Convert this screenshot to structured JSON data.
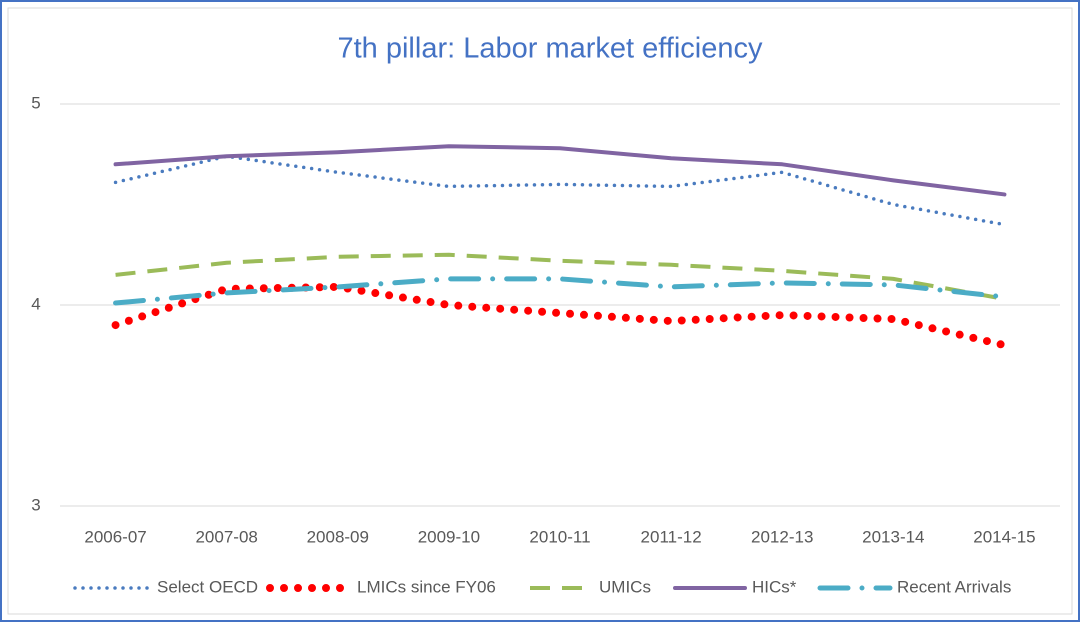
{
  "chart_data": {
    "type": "line",
    "title": "7th pillar: Labor market efficiency",
    "categories": [
      "2006-07",
      "2007-08",
      "2008-09",
      "2009-10",
      "2010-11",
      "2011-12",
      "2012-13",
      "2013-14",
      "2014-15"
    ],
    "ylim": [
      3,
      5
    ],
    "yticks": [
      3,
      4,
      5
    ],
    "grid": true,
    "legend": "bottom",
    "series": [
      {
        "name": "Select OECD",
        "color": "#4a7bbf",
        "line_style": "dotted",
        "values": [
          4.61,
          4.74,
          4.66,
          4.59,
          4.6,
          4.59,
          4.66,
          4.5,
          4.4
        ]
      },
      {
        "name": "LMICs since FY06",
        "color": "#ff0000",
        "line_style": "round-dotted",
        "values": [
          3.9,
          4.08,
          4.09,
          4.0,
          3.96,
          3.92,
          3.95,
          3.93,
          3.8
        ]
      },
      {
        "name": "UMICs",
        "color": "#9bbb59",
        "line_style": "dashed",
        "values": [
          4.15,
          4.21,
          4.24,
          4.25,
          4.22,
          4.2,
          4.17,
          4.13,
          4.03
        ]
      },
      {
        "name": "HICs*",
        "color": "#8064a2",
        "line_style": "solid",
        "values": [
          4.7,
          4.74,
          4.76,
          4.79,
          4.78,
          4.73,
          4.7,
          4.62,
          4.55
        ]
      },
      {
        "name": "Recent Arrivals",
        "color": "#4bacc6",
        "line_style": "dash-dot",
        "values": [
          4.01,
          4.06,
          4.09,
          4.13,
          4.13,
          4.09,
          4.11,
          4.1,
          4.04
        ]
      }
    ]
  }
}
